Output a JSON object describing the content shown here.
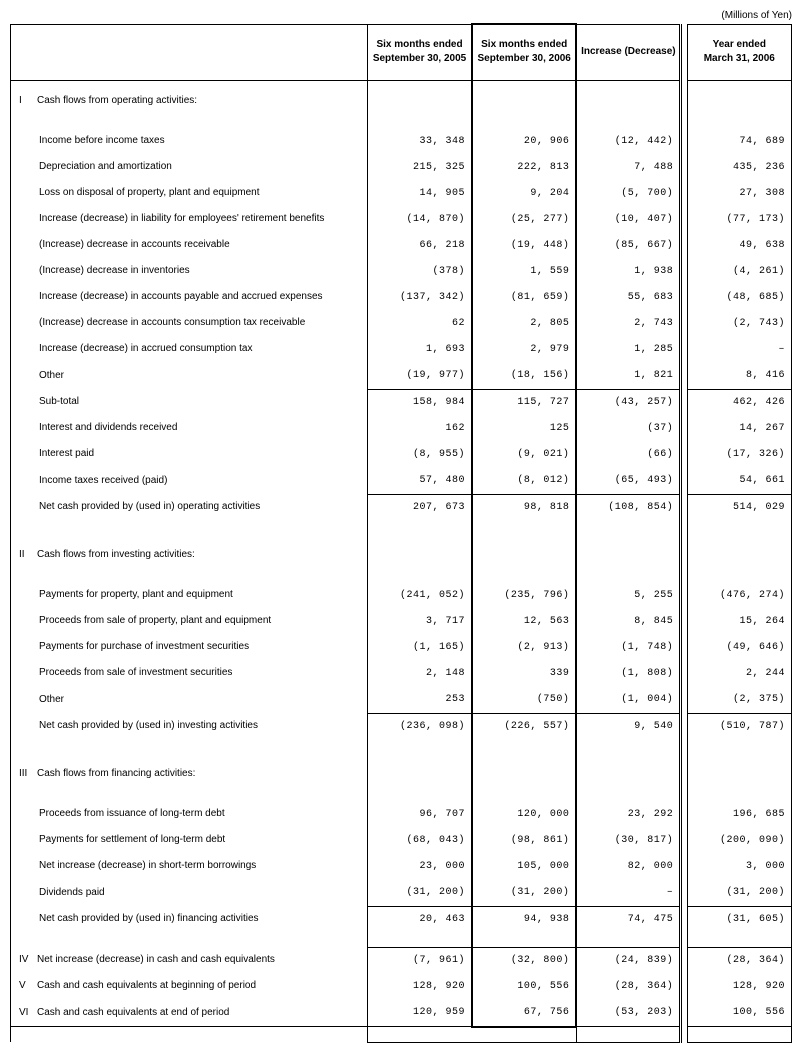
{
  "unit_label": "(Millions of Yen)",
  "headers": {
    "label": "",
    "col2005": "Six months ended\nSeptember 30, 2005",
    "col2006": "Six months ended\nSeptember 30, 2006",
    "colInc": "Increase (Decrease)",
    "colYear": "Year ended\nMarch 31, 2006"
  },
  "sections": [
    {
      "type": "section",
      "roman": "I",
      "label": "Cash flows from operating activities:"
    },
    {
      "type": "item",
      "label": "Income before income taxes",
      "v2005": "33,348",
      "v2006": "20,906",
      "vinc": "(12,442)",
      "vyear": "74,689"
    },
    {
      "type": "item",
      "label": "Depreciation and amortization",
      "v2005": "215,325",
      "v2006": "222,813",
      "vinc": "7,488",
      "vyear": "435,236"
    },
    {
      "type": "item",
      "label": "Loss on disposal of property, plant and equipment",
      "v2005": "14,905",
      "v2006": "9,204",
      "vinc": "(5,700)",
      "vyear": "27,308"
    },
    {
      "type": "item",
      "label": "Increase (decrease) in liability for employees' retirement benefits",
      "v2005": "(14,870)",
      "v2006": "(25,277)",
      "vinc": "(10,407)",
      "vyear": "(77,173)"
    },
    {
      "type": "item",
      "label": "(Increase) decrease in accounts receivable",
      "v2005": "66,218",
      "v2006": "(19,448)",
      "vinc": "(85,667)",
      "vyear": "49,638"
    },
    {
      "type": "item",
      "label": "(Increase) decrease in inventories",
      "v2005": "(378)",
      "v2006": "1,559",
      "vinc": "1,938",
      "vyear": "(4,261)"
    },
    {
      "type": "item",
      "label": "Increase (decrease) in accounts payable and accrued expenses",
      "v2005": "(137,342)",
      "v2006": "(81,659)",
      "vinc": "55,683",
      "vyear": "(48,685)"
    },
    {
      "type": "item",
      "label": "(Increase) decrease in accounts consumption tax receivable",
      "v2005": "62",
      "v2006": "2,805",
      "vinc": "2,743",
      "vyear": "(2,743)"
    },
    {
      "type": "item",
      "label": "Increase (decrease) in accrued consumption tax",
      "v2005": "1,693",
      "v2006": "2,979",
      "vinc": "1,285",
      "vyear": "–"
    },
    {
      "type": "item",
      "label": "Other",
      "v2005": "(19,977)",
      "v2006": "(18,156)",
      "vinc": "1,821",
      "vyear": "8,416"
    },
    {
      "type": "subtotal",
      "label": "Sub-total",
      "v2005": "158,984",
      "v2006": "115,727",
      "vinc": "(43,257)",
      "vyear": "462,426"
    },
    {
      "type": "item",
      "label": "Interest and dividends received",
      "v2005": "162",
      "v2006": "125",
      "vinc": "(37)",
      "vyear": "14,267"
    },
    {
      "type": "item",
      "label": "Interest paid",
      "v2005": "(8,955)",
      "v2006": "(9,021)",
      "vinc": "(66)",
      "vyear": "(17,326)"
    },
    {
      "type": "item",
      "label": "Income taxes received (paid)",
      "v2005": "57,480",
      "v2006": "(8,012)",
      "vinc": "(65,493)",
      "vyear": "54,661"
    },
    {
      "type": "total",
      "label": "Net cash provided by (used in) operating activities",
      "v2005": "207,673",
      "v2006": "98,818",
      "vinc": "(108,854)",
      "vyear": "514,029"
    },
    {
      "type": "section",
      "roman": "II",
      "label": "Cash flows from investing activities:"
    },
    {
      "type": "item",
      "label": "Payments for property, plant and equipment",
      "v2005": "(241,052)",
      "v2006": "(235,796)",
      "vinc": "5,255",
      "vyear": "(476,274)"
    },
    {
      "type": "item",
      "label": "Proceeds from sale of property, plant and equipment",
      "v2005": "3,717",
      "v2006": "12,563",
      "vinc": "8,845",
      "vyear": "15,264"
    },
    {
      "type": "item",
      "label": "Payments for purchase of investment securities",
      "v2005": "(1,165)",
      "v2006": "(2,913)",
      "vinc": "(1,748)",
      "vyear": "(49,646)"
    },
    {
      "type": "item",
      "label": "Proceeds from sale of investment securities",
      "v2005": "2,148",
      "v2006": "339",
      "vinc": "(1,808)",
      "vyear": "2,244"
    },
    {
      "type": "item",
      "label": "Other",
      "v2005": "253",
      "v2006": "(750)",
      "vinc": "(1,004)",
      "vyear": "(2,375)"
    },
    {
      "type": "total",
      "label": "Net cash provided by (used in) investing activities",
      "v2005": "(236,098)",
      "v2006": "(226,557)",
      "vinc": "9,540",
      "vyear": "(510,787)"
    },
    {
      "type": "section",
      "roman": "III",
      "label": "Cash flows from financing activities:"
    },
    {
      "type": "item",
      "label": "Proceeds from issuance of long-term debt",
      "v2005": "96,707",
      "v2006": "120,000",
      "vinc": "23,292",
      "vyear": "196,685"
    },
    {
      "type": "item",
      "label": "Payments for settlement of long-term debt",
      "v2005": "(68,043)",
      "v2006": "(98,861)",
      "vinc": "(30,817)",
      "vyear": "(200,090)"
    },
    {
      "type": "item",
      "label": "Net increase (decrease) in short-term borrowings",
      "v2005": "23,000",
      "v2006": "105,000",
      "vinc": "82,000",
      "vyear": "3,000"
    },
    {
      "type": "item",
      "label": "Dividends paid",
      "v2005": "(31,200)",
      "v2006": "(31,200)",
      "vinc": "–",
      "vyear": "(31,200)"
    },
    {
      "type": "total",
      "label": "Net cash provided by (used in) financing activities",
      "v2005": "20,463",
      "v2006": "94,938",
      "vinc": "74,475",
      "vyear": "(31,605)"
    },
    {
      "type": "summary",
      "roman": "IV",
      "label": "Net increase (decrease) in cash and cash equivalents",
      "v2005": "(7,961)",
      "v2006": "(32,800)",
      "vinc": "(24,839)",
      "vyear": "(28,364)"
    },
    {
      "type": "summary",
      "roman": "V",
      "label": "Cash and cash equivalents at beginning of period",
      "v2005": "128,920",
      "v2006": "100,556",
      "vinc": "(28,364)",
      "vyear": "128,920"
    },
    {
      "type": "summary_last",
      "roman": "VI",
      "label": "Cash and cash equivalents at end of period",
      "v2005": "120,959",
      "v2006": "67,756",
      "vinc": "(53,203)",
      "vyear": "100,556"
    }
  ]
}
